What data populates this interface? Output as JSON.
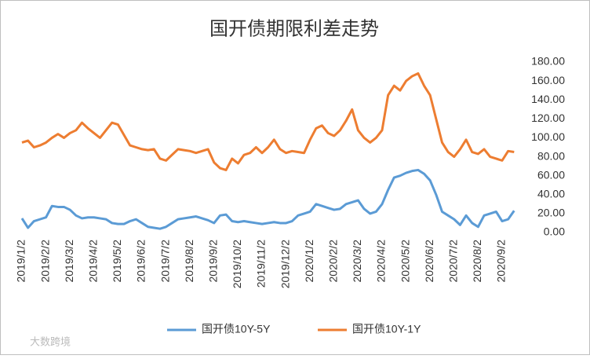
{
  "chart_data": {
    "type": "line",
    "title": "国开债期限利差走势",
    "categories": [
      "2019/1/2",
      null,
      null,
      null,
      "2019/2/2",
      null,
      null,
      null,
      "2019/3/2",
      null,
      null,
      null,
      "2019/4/2",
      null,
      null,
      null,
      "2019/5/2",
      null,
      null,
      null,
      "2019/6/2",
      null,
      null,
      null,
      "2019/7/2",
      null,
      null,
      null,
      "2019/8/2",
      null,
      null,
      null,
      "2019/9/2",
      null,
      null,
      null,
      "2019/10/2",
      null,
      null,
      null,
      "2019/11/2",
      null,
      null,
      null,
      "2019/12/2",
      null,
      null,
      null,
      "2020/1/2",
      null,
      null,
      null,
      "2020/2/2",
      null,
      null,
      null,
      "2020/3/2",
      null,
      null,
      null,
      "2020/4/2",
      null,
      null,
      null,
      "2020/5/2",
      null,
      null,
      null,
      "2020/6/2",
      null,
      null,
      null,
      "2020/7/2",
      null,
      null,
      null,
      "2020/8/2",
      null,
      null,
      null,
      "2020/9/2",
      null,
      null
    ],
    "series": [
      {
        "name": "国开债10Y-5Y",
        "color": "#5b9bd5",
        "values": [
          15,
          5,
          12,
          14,
          16,
          28,
          27,
          27,
          24,
          18,
          15,
          16,
          16,
          15,
          14,
          10,
          9,
          9,
          12,
          14,
          10,
          6,
          5,
          4,
          6,
          10,
          14,
          15,
          16,
          17,
          15,
          13,
          10,
          18,
          19,
          12,
          11,
          12,
          11,
          10,
          9,
          10,
          11,
          10,
          10,
          12,
          18,
          20,
          22,
          30,
          28,
          26,
          24,
          25,
          30,
          32,
          34,
          25,
          20,
          22,
          30,
          45,
          58,
          60,
          63,
          65,
          66,
          62,
          55,
          40,
          22,
          18,
          14,
          8,
          18,
          10,
          6,
          18,
          20,
          22,
          12,
          14,
          23
        ]
      },
      {
        "name": "国开债10Y-1Y",
        "color": "#ed7d31",
        "values": [
          95,
          97,
          90,
          92,
          95,
          100,
          104,
          100,
          105,
          108,
          116,
          110,
          105,
          100,
          108,
          116,
          114,
          103,
          92,
          90,
          88,
          87,
          88,
          78,
          76,
          82,
          88,
          87,
          86,
          84,
          86,
          88,
          74,
          68,
          66,
          78,
          73,
          82,
          84,
          90,
          84,
          90,
          98,
          88,
          84,
          86,
          85,
          84,
          98,
          110,
          113,
          105,
          102,
          108,
          118,
          130,
          108,
          100,
          95,
          100,
          108,
          145,
          155,
          150,
          160,
          165,
          168,
          155,
          145,
          120,
          95,
          85,
          80,
          88,
          98,
          85,
          83,
          88,
          80,
          78,
          76,
          86,
          85
        ]
      }
    ],
    "ylim": [
      0,
      180
    ],
    "yticks": [
      {
        "value": 0,
        "label": "0.00"
      },
      {
        "value": 20,
        "label": "20.00"
      },
      {
        "value": 40,
        "label": "40.00"
      },
      {
        "value": 60,
        "label": "60.00"
      },
      {
        "value": 80,
        "label": "80.00"
      },
      {
        "value": 100,
        "label": "100.00"
      },
      {
        "value": 120,
        "label": "120.00"
      },
      {
        "value": 140,
        "label": "140.00"
      },
      {
        "value": 160,
        "label": "160.00"
      },
      {
        "value": 180,
        "label": "180.00"
      }
    ],
    "watermark": "大数跨境"
  }
}
